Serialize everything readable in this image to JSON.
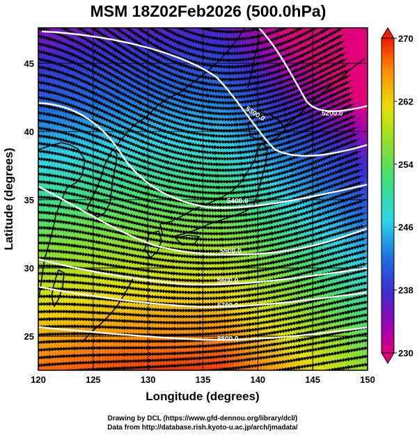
{
  "title": "MSM 18Z02Feb2026 (500.0hPa)",
  "x_axis": {
    "label": "Longitude (degrees)",
    "range": [
      120,
      150
    ],
    "ticks": [
      "120",
      "125",
      "130",
      "135",
      "140",
      "145",
      "150"
    ]
  },
  "y_axis": {
    "label": "Latitude  (degrees)",
    "range": [
      22.5,
      47.6
    ],
    "ticks": [
      "25",
      "30",
      "35",
      "40",
      "45"
    ]
  },
  "colorbar": {
    "range": [
      230,
      270
    ],
    "ticks": [
      "230",
      "238",
      "246",
      "254",
      "262",
      "270"
    ],
    "colors": [
      "#e0007a",
      "#a000b0",
      "#3a2fd0",
      "#1e6ee0",
      "#2ad6e8",
      "#3ee07a",
      "#8ee028",
      "#e8e000",
      "#ff8a00",
      "#f01a00"
    ]
  },
  "contour_labels": [
    {
      "text": "5200.0"
    },
    {
      "text": "5300.0"
    },
    {
      "text": "5400.0"
    },
    {
      "text": "5500.0"
    },
    {
      "text": "5600.0"
    },
    {
      "text": "5700.0"
    },
    {
      "text": "5800.0"
    }
  ],
  "credits": {
    "line1": "Drawing by DCL (https://www.gfd-dennou.org/library/dcl/)",
    "line2": "Data from http://database.rish.kyoto-u.ac.jp/arch/jmadata/"
  }
}
